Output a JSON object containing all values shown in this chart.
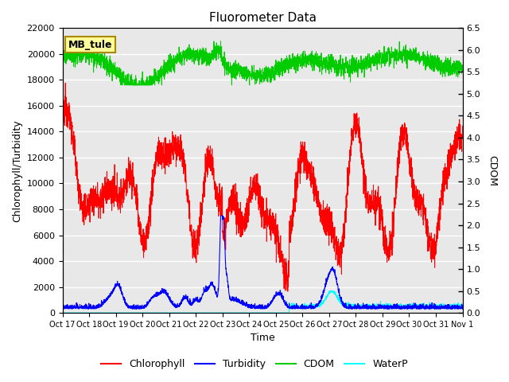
{
  "title": "Fluorometer Data",
  "xlabel": "Time",
  "ylabel_left": "Chlorophyll/Turbidity",
  "ylabel_right": "CDOM",
  "annotation_text": "MB_tule",
  "annotation_bbox_fc": "#FFFF99",
  "annotation_bbox_ec": "#AA8800",
  "ylim_left": [
    0,
    22000
  ],
  "ylim_right": [
    0.0,
    6.5
  ],
  "yticks_left": [
    0,
    2000,
    4000,
    6000,
    8000,
    10000,
    12000,
    14000,
    16000,
    18000,
    20000,
    22000
  ],
  "yticks_right": [
    0.0,
    0.5,
    1.0,
    1.5,
    2.0,
    2.5,
    3.0,
    3.5,
    4.0,
    4.5,
    5.0,
    5.5,
    6.0,
    6.5
  ],
  "xtick_labels": [
    "Oct 17",
    "Oct 18",
    "Oct 19",
    "Oct 20",
    "Oct 21",
    "Oct 22",
    "Oct 23",
    "Oct 24",
    "Oct 25",
    "Oct 26",
    "Oct 27",
    "Oct 28",
    "Oct 29",
    "Oct 30",
    "Oct 31",
    "Nov 1"
  ],
  "colors": {
    "chlorophyll": "red",
    "turbidity": "blue",
    "cdom": "#00cc00",
    "waterp": "cyan",
    "background": "#e8e8e8",
    "grid": "#ffffff"
  },
  "legend_labels": [
    "Chlorophyll",
    "Turbidity",
    "CDOM",
    "WaterP"
  ],
  "n_points": 3000,
  "seed": 12345
}
